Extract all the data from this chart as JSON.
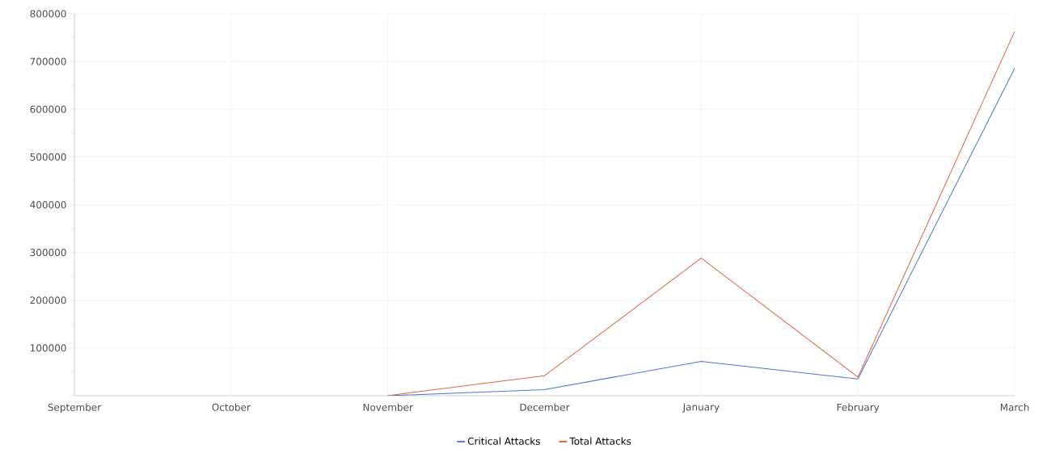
{
  "chart_data": {
    "type": "line",
    "categories": [
      "September",
      "October",
      "November",
      "December",
      "January",
      "February",
      "March"
    ],
    "series": [
      {
        "name": "Critical Attacks",
        "color": "#4a74d9",
        "values": [
          null,
          null,
          0,
          12700,
          72000,
          35000,
          686000
        ]
      },
      {
        "name": "Total Attacks",
        "color": "#e8603c",
        "values": [
          null,
          null,
          0,
          42000,
          288000,
          39000,
          763000
        ]
      }
    ],
    "ylim": [
      0,
      800000
    ],
    "yticks": [
      {
        "value": 0,
        "label": null
      },
      100000,
      200000,
      300000,
      400000,
      500000,
      600000,
      700000,
      800000
    ],
    "grid": true,
    "legend": "bottom",
    "marker": "none",
    "line_style": "solid"
  }
}
